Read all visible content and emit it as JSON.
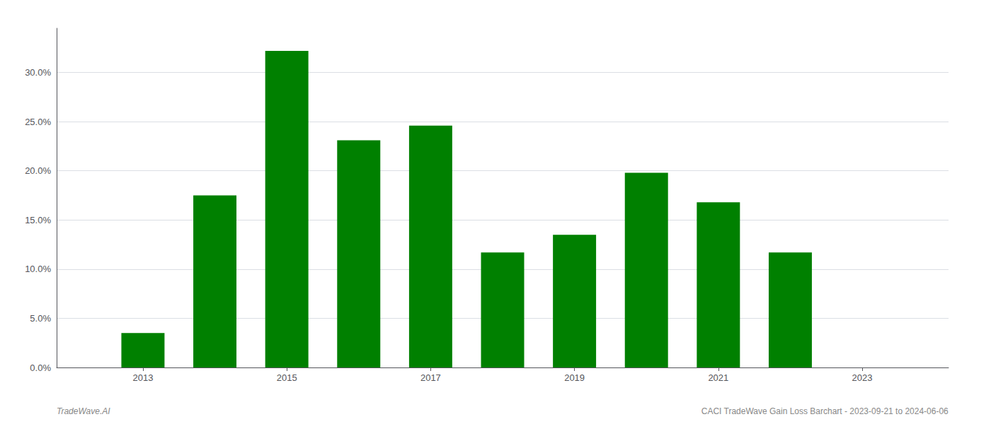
{
  "chart_data": {
    "type": "bar",
    "x": [
      2013,
      2014,
      2015,
      2016,
      2017,
      2018,
      2019,
      2020,
      2021,
      2022
    ],
    "values": [
      0.035,
      0.175,
      0.322,
      0.231,
      0.246,
      0.117,
      0.135,
      0.198,
      0.168,
      0.117
    ],
    "color": "#008000",
    "xlim": [
      2011.8,
      2024.2
    ],
    "xticks": [
      2013,
      2015,
      2017,
      2019,
      2021,
      2023
    ],
    "ylim": [
      0.0,
      0.345
    ],
    "yticks": [
      {
        "value": 0.0,
        "label": "0.0%"
      },
      {
        "value": 0.05,
        "label": "5.0%"
      },
      {
        "value": 0.1,
        "label": "10.0%"
      },
      {
        "value": 0.15,
        "label": "15.0%"
      },
      {
        "value": 0.2,
        "label": "20.0%"
      },
      {
        "value": 0.25,
        "label": "25.0%"
      },
      {
        "value": 0.3,
        "label": "30.0%"
      }
    ],
    "grid": true,
    "annotations": [
      "TradeWave.AI",
      "CACI TradeWave Gain Loss Barchart - 2023-09-21 to 2024-06-06"
    ]
  }
}
